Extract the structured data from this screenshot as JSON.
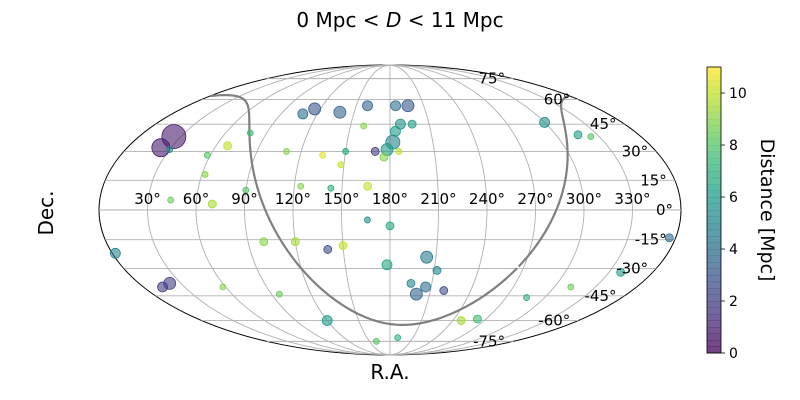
{
  "chart_data": {
    "type": "scatter",
    "projection": "mollweide",
    "title": "0 Mpc < D < 11 Mpc",
    "title_parts": {
      "left": "0 Mpc < ",
      "var": "D",
      "right": " < 11 Mpc"
    },
    "xlabel": "R.A.",
    "ylabel": "Dec.",
    "ra_tick_labels": [
      "330°",
      "300°",
      "270°",
      "240°",
      "210°",
      "180°",
      "150°",
      "120°",
      "90°",
      "60°",
      "30°"
    ],
    "ra_tick_values": [
      330,
      300,
      270,
      240,
      210,
      180,
      150,
      120,
      90,
      60,
      30
    ],
    "dec_tick_labels": [
      "75°",
      "60°",
      "45°",
      "30°",
      "15°",
      "0°",
      "-15°",
      "-30°",
      "-45°",
      "-60°",
      "-75°"
    ],
    "dec_tick_values": [
      75,
      60,
      45,
      30,
      15,
      0,
      -15,
      -30,
      -45,
      -60,
      -75
    ],
    "colorbar": {
      "label": "Distance  [Mpc]",
      "range": [
        0,
        11
      ],
      "tick_labels": [
        "0",
        "2",
        "4",
        "6",
        "8",
        "10"
      ],
      "tick_values": [
        0,
        2,
        4,
        6,
        8,
        10
      ],
      "colormap": "viridis"
    },
    "grid": true,
    "galactic_plane_color": "#808080",
    "points": [
      {
        "ra": 25,
        "dec": 38,
        "d": 0.8,
        "s": 12
      },
      {
        "ra": 23,
        "dec": 32,
        "d": 0.8,
        "s": 9
      },
      {
        "ra": 30,
        "dec": 31,
        "d": 5.0,
        "s": 3
      },
      {
        "ra": 300,
        "dec": 46,
        "d": 5.5,
        "s": 5
      },
      {
        "ra": 316,
        "dec": 39,
        "d": 6.0,
        "s": 4
      },
      {
        "ra": 324,
        "dec": 38,
        "d": 8.0,
        "s": 3
      },
      {
        "ra": 196,
        "dec": 56,
        "d": 3.0,
        "s": 6
      },
      {
        "ra": 185,
        "dec": 56,
        "d": 4.0,
        "s": 5
      },
      {
        "ra": 160,
        "dec": 56,
        "d": 3.5,
        "s": 5
      },
      {
        "ra": 138,
        "dec": 52,
        "d": 3.5,
        "s": 6
      },
      {
        "ra": 115,
        "dec": 54,
        "d": 3.0,
        "s": 6
      },
      {
        "ra": 108,
        "dec": 51,
        "d": 4.0,
        "s": 5
      },
      {
        "ra": 188,
        "dec": 45,
        "d": 5.5,
        "s": 5
      },
      {
        "ra": 184,
        "dec": 41,
        "d": 6.0,
        "s": 5
      },
      {
        "ra": 182,
        "dec": 35,
        "d": 5.0,
        "s": 7
      },
      {
        "ra": 178,
        "dec": 31,
        "d": 6.0,
        "s": 6
      },
      {
        "ra": 176,
        "dec": 27,
        "d": 9.0,
        "s": 4
      },
      {
        "ra": 170,
        "dec": 30,
        "d": 2.0,
        "s": 4
      },
      {
        "ra": 186,
        "dec": 30,
        "d": 10.0,
        "s": 3
      },
      {
        "ra": 197,
        "dec": 45,
        "d": 6.0,
        "s": 4
      },
      {
        "ra": 160,
        "dec": 44,
        "d": 9.0,
        "s": 3
      },
      {
        "ra": 150,
        "dec": 30,
        "d": 6.5,
        "s": 3
      },
      {
        "ra": 148,
        "dec": 23,
        "d": 10.0,
        "s": 3
      },
      {
        "ra": 135,
        "dec": 28,
        "d": 10.5,
        "s": 3
      },
      {
        "ra": 110,
        "dec": 30,
        "d": 9.0,
        "s": 3
      },
      {
        "ra": 78,
        "dec": 40,
        "d": 7.5,
        "s": 3
      },
      {
        "ra": 68,
        "dec": 33,
        "d": 10.0,
        "s": 4
      },
      {
        "ra": 58,
        "dec": 28,
        "d": 8.0,
        "s": 3
      },
      {
        "ra": 62,
        "dec": 18,
        "d": 9.0,
        "s": 3
      },
      {
        "ra": 166,
        "dec": 12,
        "d": 10.0,
        "s": 4
      },
      {
        "ra": 143,
        "dec": 11,
        "d": 7.0,
        "s": 3
      },
      {
        "ra": 124,
        "dec": 12,
        "d": 9.0,
        "s": 3
      },
      {
        "ra": 90,
        "dec": 10,
        "d": 8.0,
        "s": 3
      },
      {
        "ra": 70,
        "dec": 3,
        "d": 9.5,
        "s": 4
      },
      {
        "ra": 44,
        "dec": 5,
        "d": 8.5,
        "s": 3
      },
      {
        "ra": 180,
        "dec": -8,
        "d": 6.5,
        "s": 4
      },
      {
        "ra": 166,
        "dec": -5,
        "d": 5.5,
        "s": 3
      },
      {
        "ra": 150,
        "dec": -18,
        "d": 10.0,
        "s": 4
      },
      {
        "ra": 140,
        "dec": -20,
        "d": 2.5,
        "s": 4
      },
      {
        "ra": 120,
        "dec": -16,
        "d": 9.5,
        "s": 4
      },
      {
        "ra": 100,
        "dec": -16,
        "d": 9.0,
        "s": 4
      },
      {
        "ra": 178,
        "dec": -28,
        "d": 6.5,
        "s": 5
      },
      {
        "ra": 204,
        "dec": -24,
        "d": 4.5,
        "s": 6
      },
      {
        "ra": 212,
        "dec": -31,
        "d": 5.0,
        "s": 4
      },
      {
        "ra": 206,
        "dec": -40,
        "d": 4.0,
        "s": 5
      },
      {
        "ra": 195,
        "dec": -38,
        "d": 5.0,
        "s": 4
      },
      {
        "ra": 200,
        "dec": -44,
        "d": 3.5,
        "s": 6
      },
      {
        "ra": 220,
        "dec": -42,
        "d": 2.5,
        "s": 4
      },
      {
        "ra": 248,
        "dec": -60,
        "d": 9.5,
        "s": 4
      },
      {
        "ra": 262,
        "dec": -59,
        "d": 7.5,
        "s": 4
      },
      {
        "ra": 286,
        "dec": -46,
        "d": 7.0,
        "s": 3
      },
      {
        "ra": 312,
        "dec": -40,
        "d": 8.5,
        "s": 3
      },
      {
        "ra": 338,
        "dec": -32,
        "d": 6.0,
        "s": 4
      },
      {
        "ra": 120,
        "dec": -60,
        "d": 6.0,
        "s": 5
      },
      {
        "ra": 96,
        "dec": -44,
        "d": 8.5,
        "s": 3
      },
      {
        "ra": 58,
        "dec": -40,
        "d": 9.0,
        "s": 3
      },
      {
        "ra": 22,
        "dec": -38,
        "d": 2.0,
        "s": 6
      },
      {
        "ra": 14,
        "dec": -40,
        "d": 2.0,
        "s": 5
      },
      {
        "ra": 2,
        "dec": -22,
        "d": 5.0,
        "s": 5
      },
      {
        "ra": 356,
        "dec": -14,
        "d": 4.0,
        "s": 4
      },
      {
        "ra": 160,
        "dec": -75,
        "d": 8.0,
        "s": 3
      },
      {
        "ra": 190,
        "dec": -72,
        "d": 7.0,
        "s": 3
      }
    ]
  }
}
